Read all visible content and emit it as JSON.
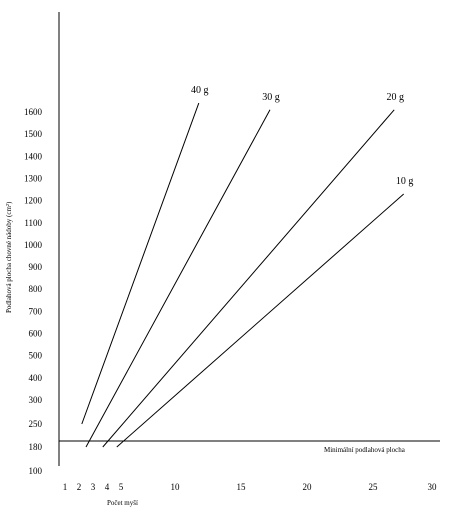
{
  "chart_data": {
    "type": "line",
    "title": "",
    "xlabel": "Počet myší",
    "ylabel": "Podlahová plocha chovné nádoby (cm²)",
    "x_ticks": [
      1,
      2,
      3,
      4,
      5,
      10,
      15,
      20,
      25,
      30
    ],
    "y_ticks": [
      100,
      180,
      250,
      300,
      400,
      500,
      600,
      700,
      800,
      900,
      1000,
      1100,
      1200,
      1300,
      1400,
      1500,
      1600
    ],
    "series": [
      {
        "name": "40 g",
        "x": [
          2.2,
          11.8
        ],
        "y": [
          250,
          1640
        ]
      },
      {
        "name": "30 g",
        "x": [
          2.5,
          17.2
        ],
        "y": [
          180,
          1610
        ]
      },
      {
        "name": "20 g",
        "x": [
          3.7,
          26.8
        ],
        "y": [
          180,
          1610
        ]
      },
      {
        "name": "10 g",
        "x": [
          4.7,
          27.6
        ],
        "y": [
          180,
          1230
        ]
      }
    ],
    "reference_line": {
      "y": 180,
      "label": "Minimální podlahová plocha"
    },
    "grid": false,
    "legend": "labels at line ends"
  }
}
